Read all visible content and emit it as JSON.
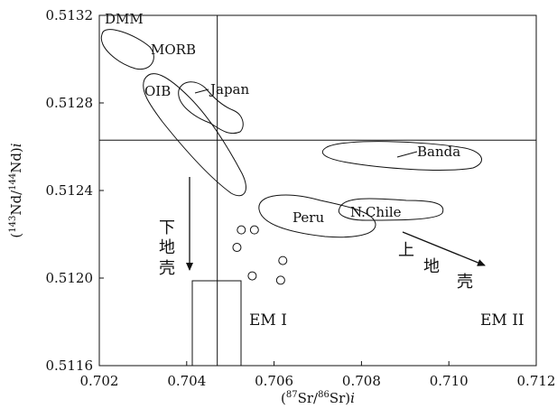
{
  "chart_data": {
    "type": "scatter",
    "xlabel": "(87Sr/86Sr)i",
    "ylabel": "(143Nd/144Nd)i",
    "xlim": [
      0.702,
      0.712
    ],
    "ylim": [
      0.5116,
      0.5132
    ],
    "x_ticks": [
      "0.702",
      "0.704",
      "0.706",
      "0.708",
      "0.710",
      "0.712"
    ],
    "y_ticks": [
      "0.5116",
      "0.5120",
      "0.5124",
      "0.5128",
      "0.5132"
    ],
    "reference_lines": {
      "vertical_x": 0.7047,
      "horizontal_y": 0.51263
    },
    "samples": [
      {
        "x": 0.70525,
        "y": 0.51222
      },
      {
        "x": 0.70555,
        "y": 0.51222
      },
      {
        "x": 0.70515,
        "y": 0.51214
      },
      {
        "x": 0.7062,
        "y": 0.51208
      },
      {
        "x": 0.7055,
        "y": 0.51201
      },
      {
        "x": 0.70615,
        "y": 0.51199
      }
    ],
    "fields": [
      {
        "name": "DMM"
      },
      {
        "name": "MORB"
      },
      {
        "name": "OIB"
      },
      {
        "name": "Japan"
      },
      {
        "name": "Banda"
      },
      {
        "name": "Peru"
      },
      {
        "name": "N.Chile"
      },
      {
        "name": "EM I"
      },
      {
        "name": "EM II"
      }
    ],
    "arrows": [
      {
        "label": "下地壳"
      },
      {
        "label": "上地壳"
      }
    ],
    "lower_crust_chars": [
      "下",
      "地",
      "壳"
    ],
    "upper_crust_chars": [
      "上",
      "地",
      "壳"
    ]
  }
}
